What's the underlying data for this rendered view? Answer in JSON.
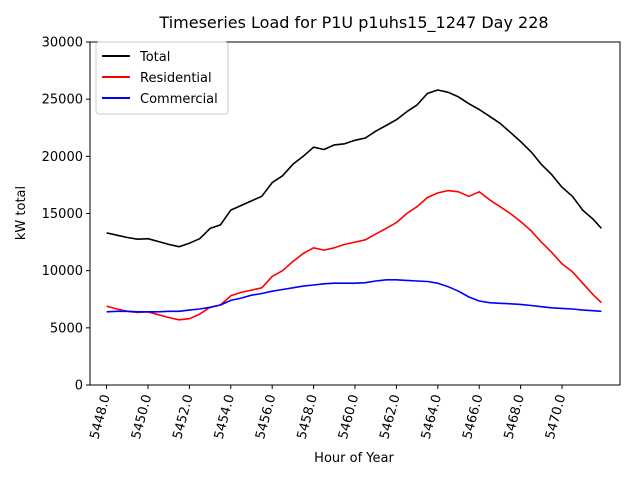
{
  "chart_data": {
    "type": "line",
    "title": "Timeseries Load for P1U p1uhs15_1247  Day 228",
    "xlabel": "Hour of Year",
    "ylabel": "kW total",
    "xlim": [
      5447.2,
      5472.8
    ],
    "ylim": [
      0,
      30000
    ],
    "xticks": [
      5448,
      5450,
      5452,
      5454,
      5456,
      5458,
      5460,
      5462,
      5464,
      5466,
      5468,
      5470
    ],
    "xtick_labels": [
      "5448.0",
      "5450.0",
      "5452.0",
      "5454.0",
      "5456.0",
      "5458.0",
      "5460.0",
      "5462.0",
      "5464.0",
      "5466.0",
      "5468.0",
      "5470.0"
    ],
    "yticks": [
      0,
      5000,
      10000,
      15000,
      20000,
      25000,
      30000
    ],
    "ytick_labels": [
      "0",
      "5000",
      "10000",
      "15000",
      "20000",
      "25000",
      "30000"
    ],
    "legend_position": "top-left",
    "series": [
      {
        "name": "Total",
        "color": "#000000",
        "points": [
          [
            5448.0,
            13300
          ],
          [
            5448.5,
            13100
          ],
          [
            5449.0,
            12900
          ],
          [
            5449.5,
            12750
          ],
          [
            5450.0,
            12800
          ],
          [
            5450.5,
            12550
          ],
          [
            5451.0,
            12300
          ],
          [
            5451.5,
            12100
          ],
          [
            5452.0,
            12400
          ],
          [
            5452.5,
            12800
          ],
          [
            5453.0,
            13700
          ],
          [
            5453.5,
            14000
          ],
          [
            5454.0,
            15300
          ],
          [
            5454.5,
            15700
          ],
          [
            5455.0,
            16100
          ],
          [
            5455.5,
            16500
          ],
          [
            5456.0,
            17700
          ],
          [
            5456.5,
            18300
          ],
          [
            5457.0,
            19300
          ],
          [
            5457.5,
            20000
          ],
          [
            5458.0,
            20800
          ],
          [
            5458.5,
            20600
          ],
          [
            5459.0,
            21000
          ],
          [
            5459.5,
            21100
          ],
          [
            5460.0,
            21400
          ],
          [
            5460.5,
            21600
          ],
          [
            5461.0,
            22200
          ],
          [
            5461.5,
            22700
          ],
          [
            5462.0,
            23200
          ],
          [
            5462.5,
            23900
          ],
          [
            5463.0,
            24500
          ],
          [
            5463.5,
            25500
          ],
          [
            5464.0,
            25800
          ],
          [
            5464.5,
            25600
          ],
          [
            5465.0,
            25200
          ],
          [
            5465.5,
            24600
          ],
          [
            5466.0,
            24100
          ],
          [
            5466.5,
            23500
          ],
          [
            5467.0,
            22900
          ],
          [
            5467.5,
            22100
          ],
          [
            5468.0,
            21300
          ],
          [
            5468.5,
            20400
          ],
          [
            5469.0,
            19300
          ],
          [
            5469.5,
            18400
          ],
          [
            5470.0,
            17300
          ],
          [
            5470.5,
            16500
          ],
          [
            5471.0,
            15300
          ],
          [
            5471.5,
            14500
          ],
          [
            5471.9,
            13700
          ]
        ]
      },
      {
        "name": "Residential",
        "color": "#ff0000",
        "points": [
          [
            5448.0,
            6900
          ],
          [
            5448.5,
            6650
          ],
          [
            5449.0,
            6450
          ],
          [
            5449.5,
            6350
          ],
          [
            5450.0,
            6400
          ],
          [
            5450.5,
            6150
          ],
          [
            5451.0,
            5900
          ],
          [
            5451.5,
            5700
          ],
          [
            5452.0,
            5800
          ],
          [
            5452.5,
            6200
          ],
          [
            5453.0,
            6800
          ],
          [
            5453.5,
            7000
          ],
          [
            5454.0,
            7800
          ],
          [
            5454.5,
            8100
          ],
          [
            5455.0,
            8300
          ],
          [
            5455.5,
            8500
          ],
          [
            5456.0,
            9500
          ],
          [
            5456.5,
            10000
          ],
          [
            5457.0,
            10800
          ],
          [
            5457.5,
            11500
          ],
          [
            5458.0,
            12000
          ],
          [
            5458.5,
            11800
          ],
          [
            5459.0,
            12000
          ],
          [
            5459.5,
            12300
          ],
          [
            5460.0,
            12500
          ],
          [
            5460.5,
            12700
          ],
          [
            5461.0,
            13200
          ],
          [
            5461.5,
            13700
          ],
          [
            5462.0,
            14200
          ],
          [
            5462.5,
            15000
          ],
          [
            5463.0,
            15600
          ],
          [
            5463.5,
            16400
          ],
          [
            5464.0,
            16800
          ],
          [
            5464.5,
            17000
          ],
          [
            5465.0,
            16900
          ],
          [
            5465.5,
            16500
          ],
          [
            5466.0,
            16900
          ],
          [
            5466.5,
            16200
          ],
          [
            5467.0,
            15600
          ],
          [
            5467.5,
            15000
          ],
          [
            5468.0,
            14300
          ],
          [
            5468.5,
            13500
          ],
          [
            5469.0,
            12500
          ],
          [
            5469.5,
            11600
          ],
          [
            5470.0,
            10600
          ],
          [
            5470.5,
            9900
          ],
          [
            5471.0,
            8900
          ],
          [
            5471.5,
            7900
          ],
          [
            5471.9,
            7200
          ]
        ]
      },
      {
        "name": "Commercial",
        "color": "#0000ff",
        "points": [
          [
            5448.0,
            6400
          ],
          [
            5448.5,
            6450
          ],
          [
            5449.0,
            6450
          ],
          [
            5449.5,
            6400
          ],
          [
            5450.0,
            6400
          ],
          [
            5450.5,
            6400
          ],
          [
            5451.0,
            6450
          ],
          [
            5451.5,
            6450
          ],
          [
            5452.0,
            6550
          ],
          [
            5452.5,
            6650
          ],
          [
            5453.0,
            6800
          ],
          [
            5453.5,
            7000
          ],
          [
            5454.0,
            7400
          ],
          [
            5454.5,
            7600
          ],
          [
            5455.0,
            7850
          ],
          [
            5455.5,
            8000
          ],
          [
            5456.0,
            8200
          ],
          [
            5456.5,
            8350
          ],
          [
            5457.0,
            8500
          ],
          [
            5457.5,
            8650
          ],
          [
            5458.0,
            8750
          ],
          [
            5458.5,
            8850
          ],
          [
            5459.0,
            8900
          ],
          [
            5459.5,
            8900
          ],
          [
            5460.0,
            8900
          ],
          [
            5460.5,
            8950
          ],
          [
            5461.0,
            9100
          ],
          [
            5461.5,
            9200
          ],
          [
            5462.0,
            9200
          ],
          [
            5462.5,
            9150
          ],
          [
            5463.0,
            9100
          ],
          [
            5463.5,
            9050
          ],
          [
            5464.0,
            8900
          ],
          [
            5464.5,
            8600
          ],
          [
            5465.0,
            8200
          ],
          [
            5465.5,
            7700
          ],
          [
            5466.0,
            7350
          ],
          [
            5466.5,
            7200
          ],
          [
            5467.0,
            7150
          ],
          [
            5467.5,
            7100
          ],
          [
            5468.0,
            7050
          ],
          [
            5468.5,
            6950
          ],
          [
            5469.0,
            6850
          ],
          [
            5469.5,
            6750
          ],
          [
            5470.0,
            6700
          ],
          [
            5470.5,
            6650
          ],
          [
            5471.0,
            6550
          ],
          [
            5471.5,
            6500
          ],
          [
            5471.9,
            6450
          ]
        ]
      }
    ]
  }
}
